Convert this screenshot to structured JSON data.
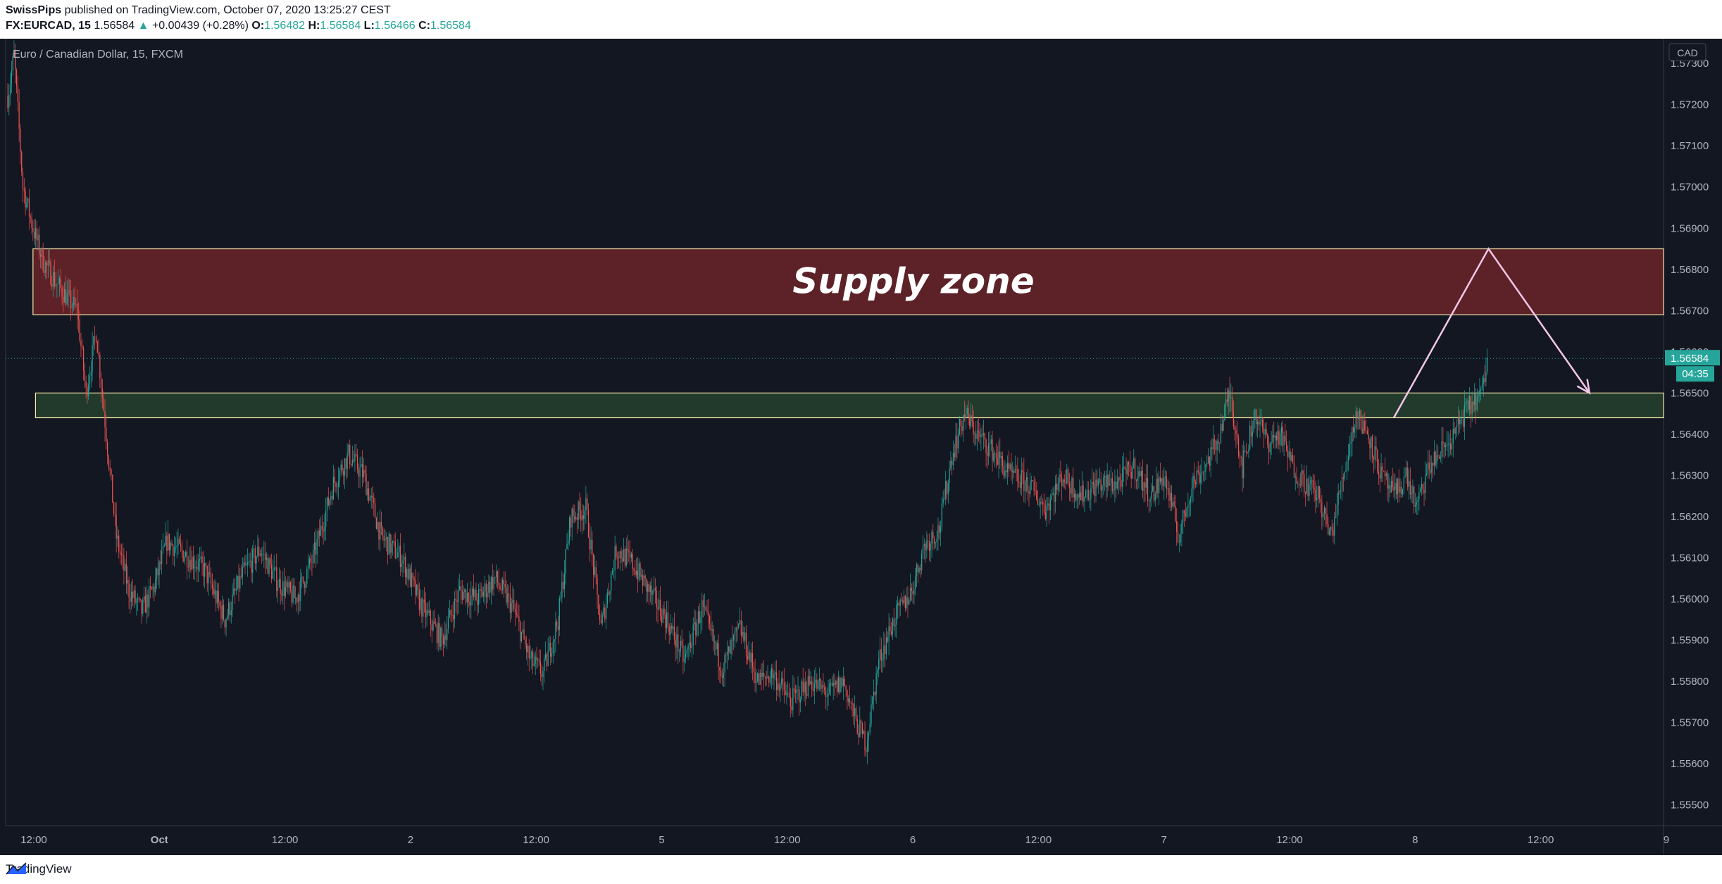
{
  "header": {
    "publisher": "SwissPips",
    "published_text": "published on TradingView.com, October 07, 2020 13:25:27 CEST",
    "symbol": "FX:EURCAD, 15",
    "last": "1.56584",
    "change_arrow": "▲",
    "change": "+0.00439 (+0.28%)",
    "o_label": "O:",
    "o_value": "1.56482",
    "h_label": "H:",
    "h_value": "1.56584",
    "l_label": "L:",
    "l_value": "1.56466",
    "c_label": "C:",
    "c_value": "1.56584"
  },
  "footer": {
    "brand": "TradingView",
    "logo_icon": "tradingview-logo-icon"
  },
  "colors": {
    "background": "#131722",
    "up": "#26a69a",
    "down": "#ef5350",
    "supply_fill": "#5c2228",
    "support_fill": "#213a2b",
    "zone_border": "#f5e7a8",
    "projection": "#f3c6e8",
    "axis_text": "#b2b5be"
  },
  "chart_data": {
    "type": "candlestick",
    "title": "Euro / Canadian Dollar, 15, FXCM",
    "currency": "CAD",
    "ylim": [
      1.5545,
      1.5736
    ],
    "y_ticks": [
      1.573,
      1.572,
      1.571,
      1.57,
      1.569,
      1.568,
      1.567,
      1.566,
      1.565,
      1.564,
      1.563,
      1.562,
      1.561,
      1.56,
      1.559,
      1.558,
      1.557,
      1.556,
      1.555
    ],
    "x_axis": {
      "labels": [
        "12:00",
        "Oct",
        "12:00",
        "2",
        "12:00",
        "5",
        "12:00",
        "6",
        "12:00",
        "7",
        "12:00",
        "8",
        "12:00",
        "9"
      ],
      "bold_labels": [
        "Oct"
      ]
    },
    "last_price": {
      "label": "1.56584",
      "value": 1.56584,
      "countdown": "04:35"
    },
    "zones": [
      {
        "name": "Supply zone",
        "label": "Supply zone",
        "from": 1.5669,
        "to": 1.5685,
        "start_bar": 20
      },
      {
        "name": "",
        "label": "",
        "from": 1.5644,
        "to": 1.565,
        "start_bar": 22
      }
    ],
    "projection": {
      "start_bar": 1098,
      "start_price": 1.5644,
      "peak_bar": 1173,
      "peak_price": 1.5685,
      "end_bar": 1253,
      "end_price": 1.565
    },
    "bars_total": 1310,
    "anchors": [
      [
        0,
        1.5722
      ],
      [
        5,
        1.5732
      ],
      [
        12,
        1.57
      ],
      [
        20,
        1.569
      ],
      [
        28,
        1.5682
      ],
      [
        40,
        1.5676
      ],
      [
        55,
        1.567
      ],
      [
        62,
        1.565
      ],
      [
        70,
        1.5665
      ],
      [
        78,
        1.564
      ],
      [
        86,
        1.5615
      ],
      [
        96,
        1.5602
      ],
      [
        106,
        1.5597
      ],
      [
        116,
        1.5603
      ],
      [
        126,
        1.5614
      ],
      [
        140,
        1.5611
      ],
      [
        156,
        1.5607
      ],
      [
        172,
        1.5595
      ],
      [
        186,
        1.5606
      ],
      [
        200,
        1.5612
      ],
      [
        214,
        1.5604
      ],
      [
        228,
        1.56
      ],
      [
        242,
        1.561
      ],
      [
        258,
        1.5628
      ],
      [
        270,
        1.5635
      ],
      [
        282,
        1.563
      ],
      [
        296,
        1.5615
      ],
      [
        312,
        1.561
      ],
      [
        328,
        1.5598
      ],
      [
        344,
        1.559
      ],
      [
        358,
        1.5602
      ],
      [
        372,
        1.56
      ],
      [
        386,
        1.5605
      ],
      [
        400,
        1.5598
      ],
      [
        414,
        1.5585
      ],
      [
        424,
        1.5582
      ],
      [
        436,
        1.5595
      ],
      [
        446,
        1.562
      ],
      [
        458,
        1.5622
      ],
      [
        470,
        1.5593
      ],
      [
        482,
        1.5612
      ],
      [
        494,
        1.5609
      ],
      [
        508,
        1.5602
      ],
      [
        522,
        1.5595
      ],
      [
        536,
        1.5585
      ],
      [
        550,
        1.5598
      ],
      [
        566,
        1.5583
      ],
      [
        580,
        1.5593
      ],
      [
        594,
        1.558
      ],
      [
        606,
        1.5582
      ],
      [
        620,
        1.5575
      ],
      [
        636,
        1.558
      ],
      [
        650,
        1.5577
      ],
      [
        662,
        1.558
      ],
      [
        672,
        1.557
      ],
      [
        680,
        1.5565
      ],
      [
        690,
        1.5585
      ],
      [
        702,
        1.5595
      ],
      [
        716,
        1.5602
      ],
      [
        726,
        1.5613
      ],
      [
        738,
        1.5617
      ],
      [
        748,
        1.5635
      ],
      [
        758,
        1.5645
      ],
      [
        768,
        1.564
      ],
      [
        780,
        1.5636
      ],
      [
        794,
        1.563
      ],
      [
        808,
        1.5628
      ],
      [
        822,
        1.5622
      ],
      [
        836,
        1.563
      ],
      [
        850,
        1.5625
      ],
      [
        864,
        1.5628
      ],
      [
        878,
        1.5628
      ],
      [
        892,
        1.5632
      ],
      [
        906,
        1.5625
      ],
      [
        916,
        1.563
      ],
      [
        928,
        1.5615
      ],
      [
        938,
        1.5628
      ],
      [
        948,
        1.5632
      ],
      [
        958,
        1.5638
      ],
      [
        968,
        1.565
      ],
      [
        978,
        1.5632
      ],
      [
        988,
        1.5645
      ],
      [
        998,
        1.5638
      ],
      [
        1008,
        1.564
      ],
      [
        1018,
        1.5632
      ],
      [
        1028,
        1.5628
      ],
      [
        1038,
        1.5625
      ],
      [
        1048,
        1.5615
      ],
      [
        1058,
        1.563
      ],
      [
        1068,
        1.5645
      ],
      [
        1078,
        1.564
      ],
      [
        1088,
        1.563
      ],
      [
        1098,
        1.5625
      ],
      [
        1108,
        1.563
      ],
      [
        1116,
        1.5622
      ],
      [
        1126,
        1.5632
      ],
      [
        1136,
        1.5636
      ],
      [
        1146,
        1.564
      ],
      [
        1154,
        1.5645
      ],
      [
        1162,
        1.5648
      ],
      [
        1168,
        1.565
      ],
      [
        1172,
        1.56584
      ]
    ]
  }
}
